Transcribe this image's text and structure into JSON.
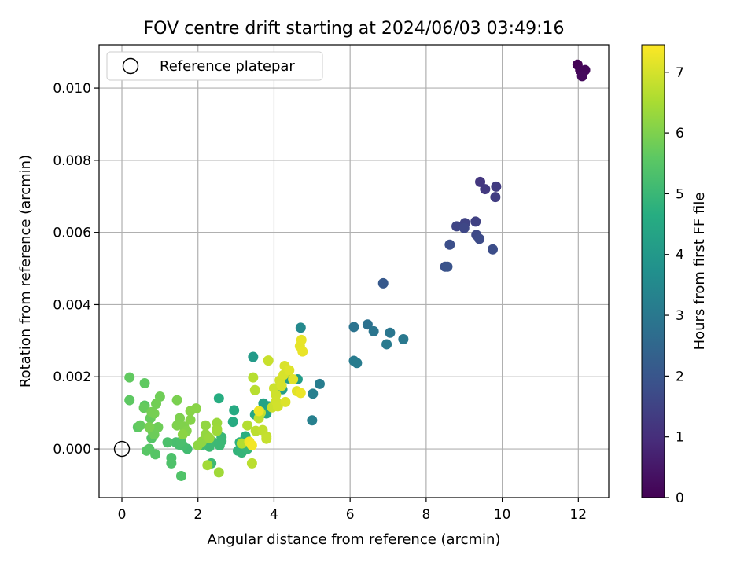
{
  "chart_data": {
    "type": "scatter",
    "title": "FOV centre drift starting at 2024/06/03 03:49:16",
    "xlabel": "Angular distance from reference (arcmin)",
    "ylabel": "Rotation from reference (arcmin)",
    "xlim": [
      -0.6,
      12.8
    ],
    "ylim": [
      -0.00135,
      0.0112
    ],
    "xticks": [
      "0",
      "2",
      "4",
      "6",
      "8",
      "10",
      "12"
    ],
    "yticks": [
      "0.000",
      "0.002",
      "0.004",
      "0.006",
      "0.008",
      "0.010"
    ],
    "grid": true,
    "legend": {
      "placement": "top-left",
      "entries": [
        "Reference platepar"
      ]
    },
    "colorbar": {
      "label": "Hours from first FF file",
      "colormap": "viridis",
      "range": [
        0,
        7.45
      ],
      "ticks": [
        "0",
        "1",
        "2",
        "3",
        "4",
        "5",
        "6",
        "7"
      ]
    },
    "reference_point": {
      "x": 0,
      "y": 0
    },
    "points": [
      [
        11.98,
        0.01065,
        0.05
      ],
      [
        12.05,
        0.0105,
        0.1
      ],
      [
        12.18,
        0.0105,
        0.15
      ],
      [
        12.1,
        0.01033,
        0.2
      ],
      [
        9.42,
        0.0074,
        1.2
      ],
      [
        9.55,
        0.0072,
        1.25
      ],
      [
        9.84,
        0.00727,
        1.3
      ],
      [
        9.82,
        0.00698,
        1.35
      ],
      [
        9.3,
        0.0063,
        1.45
      ],
      [
        9.02,
        0.00626,
        1.5
      ],
      [
        8.8,
        0.00617,
        1.55
      ],
      [
        9.0,
        0.00612,
        1.6
      ],
      [
        9.32,
        0.00593,
        1.65
      ],
      [
        9.4,
        0.00582,
        1.7
      ],
      [
        9.75,
        0.00553,
        1.75
      ],
      [
        8.62,
        0.00566,
        1.8
      ],
      [
        8.5,
        0.00505,
        1.9
      ],
      [
        8.56,
        0.00505,
        1.95
      ],
      [
        6.87,
        0.00459,
        2.1
      ],
      [
        6.46,
        0.00345,
        2.8
      ],
      [
        6.1,
        0.00338,
        2.85
      ],
      [
        6.62,
        0.00326,
        2.9
      ],
      [
        7.05,
        0.00322,
        2.95
      ],
      [
        7.4,
        0.00304,
        3.0
      ],
      [
        6.96,
        0.0029,
        3.05
      ],
      [
        6.1,
        0.00244,
        3.1
      ],
      [
        6.18,
        0.00238,
        3.12
      ],
      [
        5.2,
        0.0018,
        3.15
      ],
      [
        5.02,
        0.00153,
        3.2
      ],
      [
        5.0,
        0.00079,
        3.25
      ],
      [
        4.7,
        0.00336,
        3.5
      ],
      [
        3.45,
        0.00255,
        4.05
      ],
      [
        4.62,
        0.00193,
        4.1
      ],
      [
        4.22,
        0.00165,
        4.15
      ],
      [
        4.38,
        0.00195,
        4.2
      ],
      [
        3.72,
        0.00126,
        4.3
      ],
      [
        3.86,
        0.00118,
        4.35
      ],
      [
        3.8,
        0.00098,
        4.4
      ],
      [
        3.5,
        0.00095,
        4.45
      ],
      [
        2.95,
        0.00107,
        4.55
      ],
      [
        2.92,
        0.00075,
        4.6
      ],
      [
        2.55,
        0.0014,
        4.65
      ],
      [
        3.25,
        0.00035,
        4.7
      ],
      [
        3.1,
        0.00018,
        4.75
      ],
      [
        3.22,
        0.0001,
        4.8
      ],
      [
        3.05,
        -5e-05,
        4.85
      ],
      [
        3.15,
        -0.0001,
        4.9
      ],
      [
        3.3,
        0.0,
        4.95
      ],
      [
        2.62,
        0.00032,
        4.98
      ],
      [
        2.62,
        0.00022,
        5.0
      ],
      [
        2.57,
        0.0001,
        5.02
      ],
      [
        2.38,
        0.0002,
        5.04
      ],
      [
        2.3,
        6e-05,
        5.06
      ],
      [
        2.35,
        -0.0004,
        5.08
      ],
      [
        2.1,
        0.0001,
        5.1
      ],
      [
        1.72,
        0.0,
        5.15
      ],
      [
        1.6,
        0.0001,
        5.2
      ],
      [
        1.5,
        0.00012,
        5.22
      ],
      [
        1.42,
        0.00018,
        5.25
      ],
      [
        1.55,
        0.0002,
        5.28
      ],
      [
        1.2,
        0.00018,
        5.3
      ],
      [
        1.3,
        -0.00025,
        5.33
      ],
      [
        1.3,
        -0.0004,
        5.36
      ],
      [
        1.56,
        -0.00075,
        5.4
      ],
      [
        0.78,
        0.0003,
        5.45
      ],
      [
        0.88,
        -0.00015,
        5.48
      ],
      [
        0.72,
        0.0,
        5.5
      ],
      [
        0.65,
        -5e-05,
        5.52
      ],
      [
        0.6,
        0.0012,
        5.55
      ],
      [
        0.42,
        0.0006,
        5.58
      ],
      [
        0.2,
        0.00135,
        5.6
      ],
      [
        0.6,
        0.00182,
        5.62
      ],
      [
        0.2,
        0.00198,
        5.65
      ],
      [
        0.48,
        0.00065,
        5.68
      ],
      [
        0.58,
        0.00114,
        5.7
      ],
      [
        0.75,
        0.00085,
        5.72
      ],
      [
        0.8,
        0.0005,
        5.75
      ],
      [
        0.85,
        0.0004,
        5.78
      ],
      [
        0.95,
        0.0006,
        5.8
      ],
      [
        1.0,
        0.00145,
        5.82
      ],
      [
        0.9,
        0.00125,
        5.85
      ],
      [
        0.78,
        0.00102,
        5.88
      ],
      [
        0.85,
        0.00098,
        5.9
      ],
      [
        0.72,
        0.0006,
        5.92
      ],
      [
        1.45,
        0.00135,
        5.95
      ],
      [
        1.52,
        0.00085,
        5.98
      ],
      [
        1.45,
        0.00065,
        6.0
      ],
      [
        1.63,
        0.00062,
        6.02
      ],
      [
        1.7,
        0.0005,
        6.05
      ],
      [
        1.8,
        0.0008,
        6.08
      ],
      [
        1.8,
        0.00105,
        6.1
      ],
      [
        1.95,
        0.00112,
        6.12
      ],
      [
        1.6,
        0.0004,
        6.15
      ],
      [
        2.0,
        0.0001,
        6.18
      ],
      [
        2.1,
        0.0002,
        6.2
      ],
      [
        2.2,
        0.00065,
        6.23
      ],
      [
        2.2,
        0.0004,
        6.26
      ],
      [
        2.3,
        0.0003,
        6.3
      ],
      [
        2.5,
        0.00072,
        6.32
      ],
      [
        2.5,
        0.00055,
        6.35
      ],
      [
        2.5,
        0.0005,
        6.38
      ],
      [
        2.55,
        -0.00065,
        6.4
      ],
      [
        2.25,
        -0.00045,
        6.42
      ],
      [
        3.15,
        0.00015,
        6.6
      ],
      [
        3.3,
        0.00065,
        6.62
      ],
      [
        3.45,
        0.00198,
        6.65
      ],
      [
        3.5,
        0.00163,
        6.68
      ],
      [
        3.42,
        -0.0004,
        6.7
      ],
      [
        3.52,
        0.0005,
        6.72
      ],
      [
        3.6,
        0.00085,
        6.74
      ],
      [
        3.65,
        0.001,
        6.76
      ],
      [
        3.7,
        0.00052,
        6.78
      ],
      [
        3.8,
        0.00035,
        6.8
      ],
      [
        3.8,
        0.00028,
        6.82
      ],
      [
        3.85,
        0.00245,
        6.85
      ],
      [
        3.95,
        0.00115,
        6.88
      ],
      [
        4.0,
        0.00168,
        6.9
      ],
      [
        4.05,
        0.0015,
        6.92
      ],
      [
        4.05,
        0.00132,
        6.94
      ],
      [
        4.1,
        0.00118,
        6.96
      ],
      [
        4.15,
        0.0019,
        6.98
      ],
      [
        4.2,
        0.00175,
        7.0
      ],
      [
        4.25,
        0.00205,
        7.02
      ],
      [
        4.28,
        0.0023,
        7.05
      ],
      [
        4.3,
        0.0013,
        7.08
      ],
      [
        4.4,
        0.00218,
        7.1
      ],
      [
        4.5,
        0.00193,
        7.12
      ],
      [
        4.6,
        0.0016,
        7.15
      ],
      [
        4.68,
        0.00285,
        7.18
      ],
      [
        4.72,
        0.00302,
        7.2
      ],
      [
        4.75,
        0.0027,
        7.22
      ],
      [
        4.7,
        0.00155,
        7.25
      ],
      [
        3.6,
        0.00105,
        7.28
      ],
      [
        3.35,
        0.0002,
        7.3
      ],
      [
        3.42,
        0.0001,
        7.33
      ]
    ]
  }
}
